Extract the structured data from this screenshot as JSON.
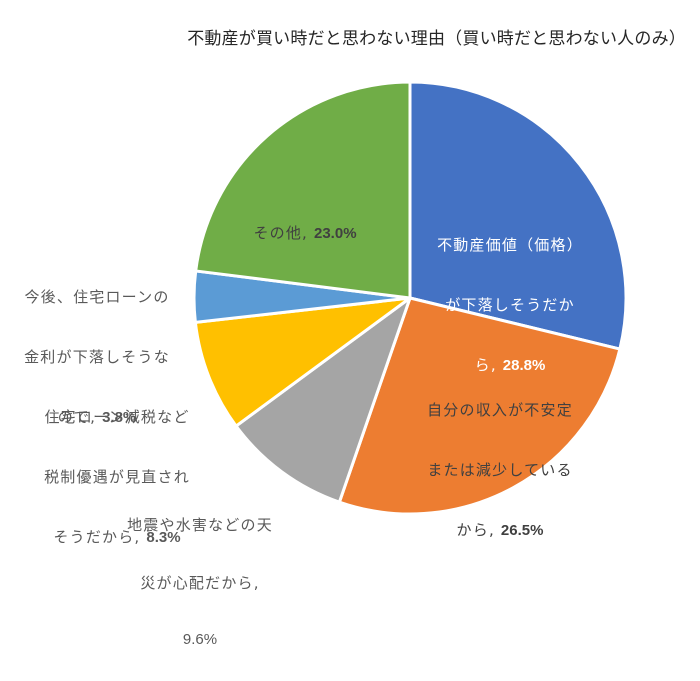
{
  "chart_data": {
    "type": "pie",
    "title": "不動産が買い時だと思わない理由（買い時だと思わない人のみ）",
    "start_angle_deg": 0,
    "direction": "clockwise",
    "center": [
      410,
      298
    ],
    "radius": 216,
    "categories": [
      "不動産価値（価格）が下落しそうだから",
      "自分の収入が不安定または減少しているから",
      "地震や水害などの天災が心配だから",
      "住宅ローン減税など税制優遇が見直されそうだから",
      "今後、住宅ローンの金利が下落しそうなので",
      "その他"
    ],
    "values": [
      28.8,
      26.5,
      9.6,
      8.3,
      3.8,
      23.0
    ],
    "unit": "%",
    "colors": [
      "#4472C4",
      "#ED7D31",
      "#A5A5A5",
      "#FFC000",
      "#5B9BD5",
      "#70AD47"
    ],
    "legend": "none",
    "data_labels": [
      {
        "text": "不動産価値（価格）\nが下落しそうだか\nら",
        "value": "28.8%",
        "position": "inside",
        "color": "#ffffff"
      },
      {
        "text": "自分の収入が不安定\nまたは減少している\nから",
        "value": "26.5%",
        "position": "inside",
        "color": "#404040"
      },
      {
        "text": "地震や水害などの天\n災が心配だから,",
        "value": "9.6%",
        "position": "outside",
        "color": "#595959"
      },
      {
        "text": "住宅ローン減税など\n税制優遇が見直され\nそうだから",
        "value": "8.3%",
        "position": "outside",
        "color": "#595959"
      },
      {
        "text": "今後、住宅ローンの\n金利が下落しそうな\nので",
        "value": "3.8%",
        "position": "outside",
        "color": "#595959"
      },
      {
        "text": "その他",
        "value": "23.0%",
        "position": "inside",
        "color": "#404040"
      }
    ]
  },
  "labels": {
    "l0": {
      "line1": "不動産価値（価格）",
      "line2": "が下落しそうだか",
      "line3": "ら, ",
      "value": "28.8%"
    },
    "l1": {
      "line1": "自分の収入が不安定",
      "line2": "または減少している",
      "line3": "から, ",
      "value": "26.5%"
    },
    "l2": {
      "line1": "地震や水害などの天",
      "line2": "災が心配だから,",
      "line3": "",
      "value": "9.6%"
    },
    "l3": {
      "line1": "住宅ローン減税など",
      "line2": "税制優遇が見直され",
      "line3": "そうだから, ",
      "value": "8.3%"
    },
    "l4": {
      "line1": "今後、住宅ローンの",
      "line2": "金利が下落しそうな",
      "line3": "ので, ",
      "value": "3.8%"
    },
    "l5": {
      "line1": "その他, ",
      "value": "23.0%"
    }
  }
}
